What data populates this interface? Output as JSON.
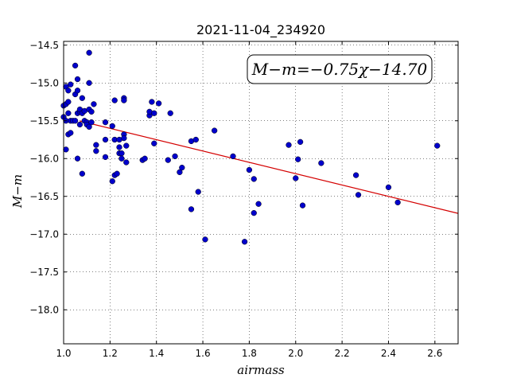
{
  "chart_data": {
    "type": "scatter",
    "title": "2021-11-04_234920",
    "xlabel": "airmass",
    "ylabel": "M−m",
    "xlim": [
      1.0,
      2.7
    ],
    "ylim": [
      -18.45,
      -14.45
    ],
    "y_inverted": true,
    "grid": true,
    "grid_style": "dotted",
    "x_ticks": [
      1.0,
      1.2,
      1.4,
      1.6,
      1.8,
      2.0,
      2.2,
      2.4,
      2.6
    ],
    "x_tick_labels": [
      "1.0",
      "1.2",
      "1.4",
      "1.6",
      "1.8",
      "2.0",
      "2.2",
      "2.4",
      "2.6"
    ],
    "y_ticks": [
      -14.5,
      -15.0,
      -15.5,
      -16.0,
      -16.5,
      -17.0,
      -17.5,
      -18.0
    ],
    "y_tick_labels": [
      "−14.5",
      "−15.0",
      "−15.5",
      "−16.0",
      "−16.5",
      "−17.0",
      "−17.5",
      "−18.0"
    ],
    "annotation": "M−m=−0.75χ−14.70",
    "annotation_placement": "top-right",
    "fit_line": {
      "slope": -0.75,
      "intercept": -14.7,
      "x_range": [
        1.07,
        2.7
      ],
      "color": "#d40000"
    },
    "point_color": "#0000cc",
    "points": [
      [
        1.0,
        -15.45
      ],
      [
        1.0,
        -15.3
      ],
      [
        1.01,
        -15.05
      ],
      [
        1.01,
        -15.88
      ],
      [
        1.01,
        -15.5
      ],
      [
        1.01,
        -15.28
      ],
      [
        1.02,
        -15.1
      ],
      [
        1.02,
        -15.4
      ],
      [
        1.02,
        -15.25
      ],
      [
        1.02,
        -15.68
      ],
      [
        1.03,
        -15.66
      ],
      [
        1.03,
        -15.5
      ],
      [
        1.03,
        -15.02
      ],
      [
        1.04,
        -15.5
      ],
      [
        1.05,
        -15.15
      ],
      [
        1.05,
        -14.77
      ],
      [
        1.05,
        -15.5
      ],
      [
        1.06,
        -14.95
      ],
      [
        1.06,
        -15.1
      ],
      [
        1.06,
        -16.0
      ],
      [
        1.06,
        -15.4
      ],
      [
        1.07,
        -15.38
      ],
      [
        1.07,
        -15.35
      ],
      [
        1.07,
        -15.55
      ],
      [
        1.08,
        -15.2
      ],
      [
        1.08,
        -15.4
      ],
      [
        1.08,
        -16.2
      ],
      [
        1.09,
        -15.37
      ],
      [
        1.09,
        -15.5
      ],
      [
        1.1,
        -15.52
      ],
      [
        1.1,
        -15.55
      ],
      [
        1.11,
        -14.6
      ],
      [
        1.11,
        -15.0
      ],
      [
        1.11,
        -15.35
      ],
      [
        1.11,
        -15.58
      ],
      [
        1.12,
        -15.38
      ],
      [
        1.12,
        -15.52
      ],
      [
        1.13,
        -15.28
      ],
      [
        1.14,
        -15.82
      ],
      [
        1.14,
        -15.9
      ],
      [
        1.18,
        -15.52
      ],
      [
        1.18,
        -15.75
      ],
      [
        1.18,
        -15.98
      ],
      [
        1.21,
        -15.57
      ],
      [
        1.21,
        -16.3
      ],
      [
        1.22,
        -15.23
      ],
      [
        1.22,
        -15.75
      ],
      [
        1.22,
        -16.22
      ],
      [
        1.23,
        -16.2
      ],
      [
        1.24,
        -15.75
      ],
      [
        1.24,
        -15.85
      ],
      [
        1.24,
        -15.93
      ],
      [
        1.25,
        -15.93
      ],
      [
        1.25,
        -16.0
      ],
      [
        1.26,
        -15.2
      ],
      [
        1.26,
        -15.23
      ],
      [
        1.26,
        -15.68
      ],
      [
        1.26,
        -15.73
      ],
      [
        1.27,
        -15.83
      ],
      [
        1.27,
        -16.05
      ],
      [
        1.34,
        -16.02
      ],
      [
        1.35,
        -16.0
      ],
      [
        1.37,
        -15.43
      ],
      [
        1.37,
        -15.38
      ],
      [
        1.38,
        -15.25
      ],
      [
        1.39,
        -15.4
      ],
      [
        1.39,
        -15.8
      ],
      [
        1.41,
        -15.27
      ],
      [
        1.45,
        -16.02
      ],
      [
        1.46,
        -15.4
      ],
      [
        1.48,
        -15.97
      ],
      [
        1.5,
        -16.18
      ],
      [
        1.51,
        -16.12
      ],
      [
        1.55,
        -15.77
      ],
      [
        1.55,
        -16.67
      ],
      [
        1.57,
        -15.75
      ],
      [
        1.58,
        -16.44
      ],
      [
        1.61,
        -17.07
      ],
      [
        1.65,
        -15.63
      ],
      [
        1.73,
        -15.97
      ],
      [
        1.78,
        -17.1
      ],
      [
        1.8,
        -16.15
      ],
      [
        1.82,
        -16.27
      ],
      [
        1.82,
        -16.72
      ],
      [
        1.84,
        -16.6
      ],
      [
        1.97,
        -15.82
      ],
      [
        2.0,
        -16.26
      ],
      [
        2.01,
        -16.01
      ],
      [
        2.02,
        -15.78
      ],
      [
        2.03,
        -16.62
      ],
      [
        2.11,
        -16.06
      ],
      [
        2.26,
        -16.22
      ],
      [
        2.27,
        -16.48
      ],
      [
        2.4,
        -16.38
      ],
      [
        2.44,
        -16.58
      ],
      [
        2.61,
        -15.83
      ]
    ]
  }
}
